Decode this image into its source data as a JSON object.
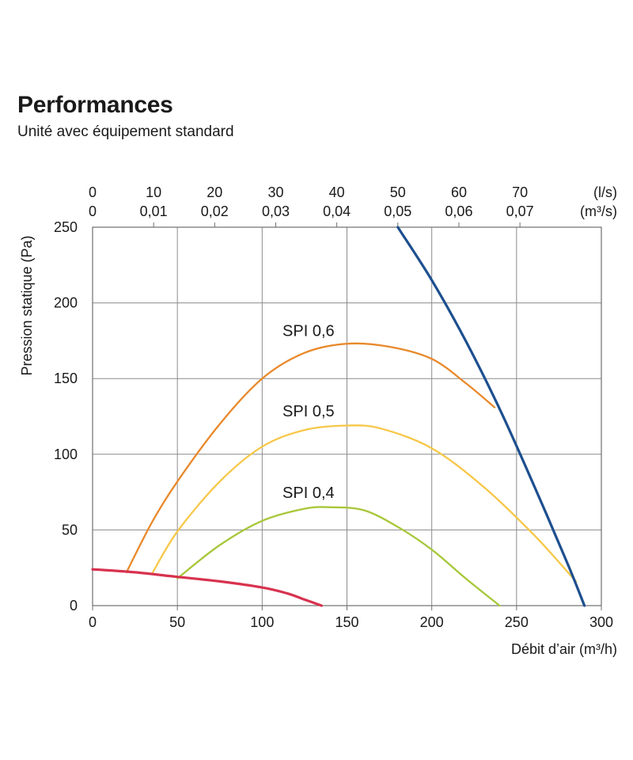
{
  "header": {
    "title": "Performances",
    "subtitle": "Unité avec équipement standard"
  },
  "chart_data": {
    "type": "line",
    "title": "Performances",
    "subtitle": "Unité avec équipement standard",
    "xlabel": "Débit d’air (m³/h)",
    "ylabel": "Pression statique  (Pa)",
    "xlim": [
      0,
      300
    ],
    "ylim": [
      0,
      250
    ],
    "grid": true,
    "x_ticks": [
      0,
      50,
      100,
      150,
      200,
      250,
      300
    ],
    "y_ticks": [
      0,
      50,
      100,
      150,
      200,
      250
    ],
    "top_axis": {
      "unit_ls": "(l/s)",
      "unit_m3s": "(m³/s)",
      "ticks_ls": [
        "0",
        "10",
        "20",
        "30",
        "40",
        "50",
        "60",
        "70"
      ],
      "ticks_m3s": [
        "0",
        "0,01",
        "0,02",
        "0,03",
        "0,04",
        "0,05",
        "0,06",
        "0,07"
      ]
    },
    "series": [
      {
        "name": "SPI 0,6",
        "color": "#e8892b",
        "points": [
          [
            20,
            22
          ],
          [
            35,
            55
          ],
          [
            50,
            82
          ],
          [
            75,
            120
          ],
          [
            100,
            150
          ],
          [
            125,
            167
          ],
          [
            150,
            173
          ],
          [
            175,
            171
          ],
          [
            200,
            163
          ],
          [
            220,
            147
          ],
          [
            237,
            131
          ]
        ]
      },
      {
        "name": "SPI 0,5",
        "color": "#f7c748",
        "points": [
          [
            35,
            21
          ],
          [
            50,
            49
          ],
          [
            75,
            82
          ],
          [
            100,
            105
          ],
          [
            125,
            116
          ],
          [
            150,
            119
          ],
          [
            170,
            117
          ],
          [
            200,
            104
          ],
          [
            230,
            79
          ],
          [
            260,
            47
          ],
          [
            285,
            16
          ]
        ]
      },
      {
        "name": "SPI 0,4",
        "color": "#a7c739",
        "points": [
          [
            50,
            18
          ],
          [
            75,
            40
          ],
          [
            100,
            56
          ],
          [
            125,
            64
          ],
          [
            140,
            65
          ],
          [
            160,
            63
          ],
          [
            180,
            52
          ],
          [
            200,
            37
          ],
          [
            220,
            18
          ],
          [
            240,
            0
          ]
        ]
      },
      {
        "name": "",
        "color": "#1d4f8f",
        "points": [
          [
            180,
            250
          ],
          [
            200,
            215
          ],
          [
            220,
            175
          ],
          [
            240,
            130
          ],
          [
            260,
            80
          ],
          [
            280,
            28
          ],
          [
            290,
            0
          ]
        ]
      },
      {
        "name": "",
        "color": "#d8324f",
        "points": [
          [
            0,
            24
          ],
          [
            25,
            22
          ],
          [
            50,
            19
          ],
          [
            75,
            16
          ],
          [
            100,
            12
          ],
          [
            115,
            8
          ],
          [
            125,
            4
          ],
          [
            135,
            0
          ]
        ]
      }
    ],
    "series_labels": [
      {
        "text": "SPI 0,6",
        "x": 112,
        "y": 178,
        "color": "#e8892b"
      },
      {
        "text": "SPI 0,5",
        "x": 112,
        "y": 125,
        "color": "#f7c748"
      },
      {
        "text": "SPI 0,4",
        "x": 112,
        "y": 71,
        "color": "#a7c739"
      }
    ]
  }
}
